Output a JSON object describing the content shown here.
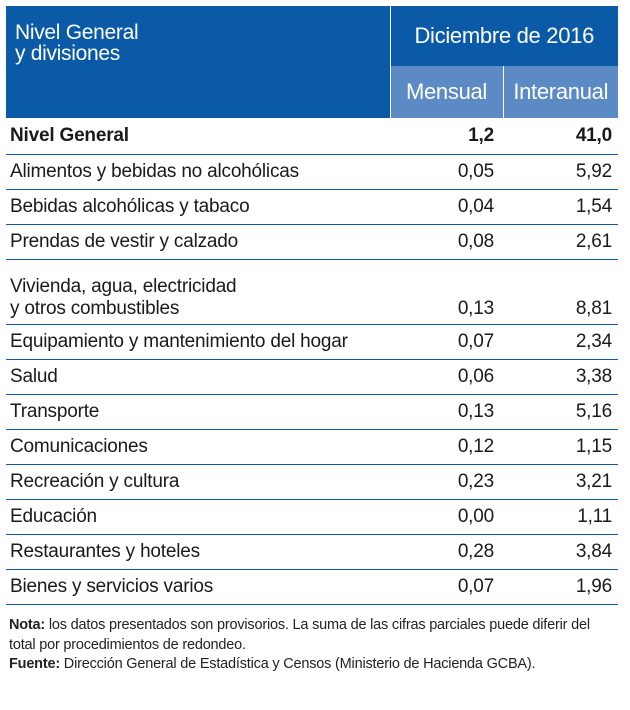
{
  "header": {
    "label_line1": "Nivel General",
    "label_line2": "y divisiones",
    "period": "Diciembre de 2016",
    "col_monthly": "Mensual",
    "col_yearly": "Interanual"
  },
  "rows": [
    {
      "label": "Nivel General",
      "mensual": "1,2",
      "interanual": "41,0"
    },
    {
      "label": "Alimentos y bebidas no alcohólicas",
      "mensual": "0,05",
      "interanual": "5,92"
    },
    {
      "label": "Bebidas alcohólicas y tabaco",
      "mensual": "0,04",
      "interanual": "1,54"
    },
    {
      "label": "Prendas de vestir y calzado",
      "mensual": "0,08",
      "interanual": "2,61"
    },
    {
      "label_line1": "Vivienda, agua, electricidad",
      "label_line2": "y otros combustibles",
      "mensual": "0,13",
      "interanual": "8,81"
    },
    {
      "label": "Equipamiento y mantenimiento del hogar",
      "mensual": "0,07",
      "interanual": "2,34"
    },
    {
      "label": "Salud",
      "mensual": "0,06",
      "interanual": "3,38"
    },
    {
      "label": "Transporte",
      "mensual": "0,13",
      "interanual": "5,16"
    },
    {
      "label": "Comunicaciones",
      "mensual": "0,12",
      "interanual": "1,15"
    },
    {
      "label": "Recreación y cultura",
      "mensual": "0,23",
      "interanual": "3,21"
    },
    {
      "label": "Educación",
      "mensual": "0,00",
      "interanual": "1,11"
    },
    {
      "label": "Restaurantes y hoteles",
      "mensual": "0,28",
      "interanual": "3,84"
    },
    {
      "label": "Bienes y servicios varios",
      "mensual": "0,07",
      "interanual": "1,96"
    }
  ],
  "notes": {
    "nota_label": "Nota:",
    "nota_text": " los datos presentados son provisorios. La suma de las cifras parciales puede diferir del total por procedimientos de redondeo.",
    "fuente_label": "Fuente:",
    "fuente_text": " Dirección General de Estadística y Censos (Ministerio de Hacienda GCBA)."
  }
}
